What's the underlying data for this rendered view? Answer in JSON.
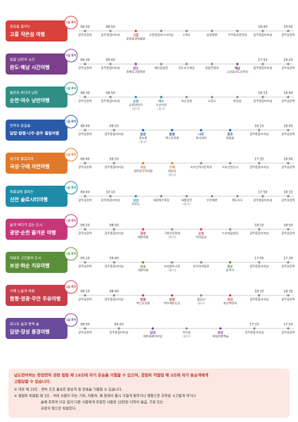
{
  "routes": [
    {
      "subtitle": "희망을 꿈꾸는",
      "title": "고흥 작은섬 여행",
      "badge": "1일 투어",
      "color": "#d9413b",
      "stops": [
        {
          "time": "08:30",
          "name": "광주송정역"
        },
        {
          "time": "08:50",
          "name": "광주종합터미널"
        },
        {
          "name": "분청문화박물관",
          "place": "고흥"
        },
        {
          "name": "고흥종합버스터미널"
        },
        {
          "name": "소록도"
        },
        {
          "name": "남열해변"
        },
        {
          "name": "우주발사전망대"
        },
        {
          "time": "18:40",
          "name": "광주종합터미널"
        },
        {
          "time": "19:05",
          "name": "광주송정역"
        }
      ]
    },
    {
      "subtitle": "땅끝 낭만의 시간",
      "title": "완도·해남 시간여행",
      "badge": "1일 투어",
      "color": "#7b3f8c",
      "stops": [
        {
          "time": "08:30",
          "name": "광주송정역"
        },
        {
          "time": "09:00",
          "name": "광주종합터미널"
        },
        {
          "name": "청해포구촬영장",
          "place": "완도"
        },
        {
          "name": "해신촬영장"
        },
        {
          "name": "정도리구계등"
        },
        {
          "name": "땅끝전망대"
        },
        {
          "name": "고산윤선도유적지",
          "place": "해남"
        },
        {
          "time": "17:55",
          "name": "광주종합터미널"
        },
        {
          "time": "18:20",
          "name": "광주송정역"
        }
      ]
    },
    {
      "subtitle": "들판과 바다의 낭만",
      "title": "순천·여수 낭만여행",
      "badge": "1일 투어",
      "color": "#2f8f87",
      "stops": [
        {
          "time": "08:30",
          "name": "광주송정역"
        },
        {
          "time": "08:50",
          "name": "광주종합터미널"
        },
        {
          "name": "순천만습지",
          "place": "순천",
          "note": "(중식)"
        },
        {
          "name": "수산시장",
          "place": "여수",
          "note": "(중식)"
        },
        {
          "name": "자산공원"
        },
        {
          "name": "오동도"
        },
        {
          "name": "향일암"
        },
        {
          "time": "18:15",
          "name": "광주종합터미널"
        },
        {
          "time": "18:40",
          "name": "광주송정역"
        }
      ]
    },
    {
      "subtitle": "한옥과 흙길을",
      "title": "담양·함평·나주·광주 힐링여행",
      "badge": "1일 투어",
      "color": "#2a5aa8",
      "stops": [
        {
          "time": "08:40",
          "name": "광주송정역"
        },
        {
          "time": "09:10",
          "name": "광주종합터미널"
        },
        {
          "name": "죽녹원",
          "place": "담양",
          "note": "(중식)"
        },
        {
          "name": "엑스포공원",
          "place": "함평"
        },
        {
          "name": "목사내아",
          "place": "나주"
        },
        {
          "name": "양림동",
          "place": "광주"
        },
        {
          "time": "18:15",
          "name": "광주종합터미널"
        },
        {
          "time": "18:40",
          "name": "광주송정역"
        }
      ]
    },
    {
      "subtitle": "섬진강 물길따라",
      "title": "곡성·구례 자연여행",
      "badge": "1일 투어",
      "color": "#e0792b",
      "stops": [
        {
          "time": "08:40",
          "name": "광주송정역"
        },
        {
          "time": "09:10",
          "name": "광주종합터미널"
        },
        {
          "name": "섬진강기차마을",
          "place": "곡성"
        },
        {
          "name": "화엄사",
          "place": "구례",
          "note": "(중식)"
        },
        {
          "name": "지리산역사문화관"
        },
        {
          "name": "지리산천은사"
        },
        {
          "time": "17:35",
          "name": "광주종합터미널"
        },
        {
          "time": "18:00",
          "name": "광주송정역"
        }
      ]
    },
    {
      "subtitle": "퍼플섬에 꽃피는",
      "title": "신안 슬로시티여행",
      "badge": "1일 투어",
      "color": "#1c8ca8",
      "stops": [
        {
          "time": "09:40",
          "name": "광주송정역"
        },
        {
          "time": "10:10",
          "name": "광주종합터미널"
        },
        {
          "name": "자은도",
          "place": "신안"
        },
        {
          "name": "대광해수욕장"
        },
        {
          "name": "태평염전",
          "note": "(중식)"
        },
        {
          "name": "우전해변"
        },
        {
          "name": "엘도라도"
        },
        {
          "time": "17:50",
          "name": "광주종합터미널"
        },
        {
          "time": "18:15",
          "name": "광주송정역"
        }
      ]
    },
    {
      "subtitle": "숲과 바다가 있는 도시",
      "title": "광양·순천 즐거운 여행",
      "badge": "1일 투어",
      "color": "#c8367a",
      "stops": [
        {
          "time": "08:20",
          "name": "광주송정역"
        },
        {
          "time": "08:50",
          "name": "광주종합터미널"
        },
        {
          "name": "매화마을",
          "place": "광양"
        },
        {
          "name": "구봉산전망대",
          "note": "(중식)"
        },
        {
          "name": "낙안읍성",
          "place": "순천"
        },
        {
          "name": "드라마촬영장"
        },
        {
          "time": "18:25",
          "name": "광주종합터미널"
        },
        {
          "time": "18:50",
          "name": "광주송정역"
        }
      ]
    },
    {
      "subtitle": "차밭과 고인돌의 도시",
      "title": "보성·화순 치유여행",
      "badge": "1일 투어",
      "color": "#5b8f3a",
      "stops": [
        {
          "time": "09:10",
          "name": "광주송정역"
        },
        {
          "time": "09:40",
          "name": "광주종합터미널"
        },
        {
          "name": "대한다원",
          "place": "보성"
        },
        {
          "name": "보성향토시장",
          "note": "(중식)"
        },
        {
          "name": "한국차박물관"
        },
        {
          "name": "운주사",
          "place": "화순"
        },
        {
          "time": "17:05",
          "name": "광주종합터미널"
        },
        {
          "time": "17:30",
          "name": "광주송정역"
        }
      ]
    },
    {
      "subtitle": "서해 노을과 바람",
      "title": "함평·영광·무안 주유여행",
      "badge": "1일 투어",
      "color": "#c73d4a",
      "stops": [
        {
          "time": "08:10",
          "name": "광주송정역"
        },
        {
          "time": "08:40",
          "name": "광주종합터미널"
        },
        {
          "name": "엑스포공원",
          "place": "함평"
        },
        {
          "name": "백수해안도로",
          "place": "영광"
        },
        {
          "name": "불갑사",
          "note": "(중식)"
        },
        {
          "name": "회산백련지",
          "place": "무안"
        },
        {
          "time": "18:10",
          "name": "광주종합터미널"
        },
        {
          "time": "18:35",
          "name": "광주송정역"
        }
      ]
    },
    {
      "subtitle": "대나무 숲과 편백 숲",
      "title": "담양·장성 풍경여행",
      "badge": "1일 투어",
      "color": "#6a4a9a",
      "stops": [
        {
          "time": "08:50",
          "name": "광주송정역"
        },
        {
          "time": "09:20",
          "name": "광주종합터미널"
        },
        {
          "name": "메타세쿼이아길",
          "place": "담양"
        },
        {
          "name": "죽녹원",
          "note": "(중식)"
        },
        {
          "name": "축령산편백숲",
          "place": "장성"
        },
        {
          "time": "17:25",
          "name": "광주종합터미널"
        },
        {
          "time": "17:50",
          "name": "광주송정역"
        }
      ]
    }
  ],
  "notice": {
    "headline": [
      "남도한바퀴는 한정면허 관련 법령 제 19조에 의거 운송을 거절할 수 있으며, 경범죄 처벌법 제 3조에 의거 동승객에게",
      "고발당할 수 있습니다."
    ],
    "lines": [
      "※ 약관 제 19조 : 면허 조건 불승한 동승객 등 운송을 거절할 수 있습니다.",
      "※ 경범죄 처벌법 제 3조 : 여러 사람이 타는 기차, 자동차, 배 등에서 몹시 거칠게 말하거나 행동으로 주위를 시끄럽게 하거나",
      "술에 취하여 이유 없이 다른 사람에게 주정한 사람은 10만원 이하의 벌금, 구류 또는",
      "과료의 형으로 처벌한다."
    ]
  }
}
